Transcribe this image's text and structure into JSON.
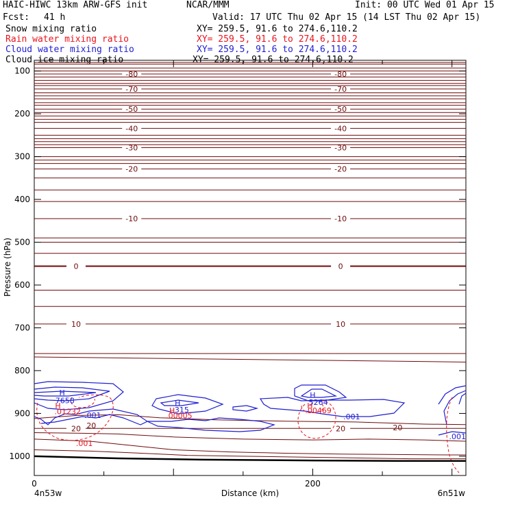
{
  "header": {
    "model": "HAIC-HIWC 13km ARW-GFS init",
    "org": "NCAR/MMM",
    "init": "Init: 00 UTC Wed 01 Apr 15",
    "fcst_label": "Fcst:",
    "fcst_value": "41 h",
    "valid": "Valid: 17 UTC Thu 02 Apr 15 (14 LST Thu 02 Apr 15)",
    "fields": [
      {
        "name": "Snow mixing ratio",
        "xy": "XY= 259.5, 91.6 to 274.6,110.2",
        "color": "#000000"
      },
      {
        "name": "Rain water mixing ratio",
        "xy": "XY= 259.5, 91.6 to 274.6,110.2",
        "color": "#e8141e"
      },
      {
        "name": "Cloud water mixing ratio",
        "xy": "XY= 259.5, 91.6 to 274.6,110.2",
        "color": "#1e1ed2"
      },
      {
        "name": "Cloud ice mixing ratio",
        "xy": "XY= 259.5, 91.6 to 274.6,110.2",
        "color": "#000000"
      }
    ]
  },
  "chart_data": {
    "type": "line",
    "xlabel": "Distance (km)",
    "ylabel": "Pressure (hPa)",
    "xlim": [
      0,
      310
    ],
    "ylim": [
      75,
      1045
    ],
    "x_ticks": [
      0,
      200
    ],
    "y_ticks": [
      100,
      200,
      300,
      400,
      500,
      600,
      700,
      800,
      900,
      1000
    ],
    "x_end_labels": {
      "left": "4n53w",
      "right": "6n51w"
    },
    "colors": {
      "temperature": "#6e0a0a",
      "rain": "#e8141e",
      "cloud_water": "#1e1ed2",
      "ground": "#000000"
    },
    "temperature_isotherms": [
      {
        "label": "-80",
        "pressure": 107
      },
      {
        "label": "-70",
        "pressure": 142
      },
      {
        "label": "-50",
        "pressure": 189
      },
      {
        "label": "-40",
        "pressure": 234
      },
      {
        "label": "-30",
        "pressure": 279
      },
      {
        "label": "-20",
        "pressure": 329
      },
      {
        "label": "-10",
        "pressure": 445
      },
      {
        "label": "0",
        "pressure": 556
      },
      {
        "label": "10",
        "pressure": 691
      },
      {
        "label": "20",
        "pressure": 935
      }
    ],
    "annotations": [
      {
        "text": "H",
        "x": 20,
        "p": 851,
        "color": "#1e1ed2"
      },
      {
        "text": "7658",
        "x": 22,
        "p": 870,
        "color": "#1e1ed2"
      },
      {
        "text": "H",
        "x": 17,
        "p": 882,
        "color": "#e8141e"
      },
      {
        "text": ".01232",
        "x": 24,
        "p": 895,
        "color": "#e8141e"
      },
      {
        "text": ".001",
        "x": 42,
        "p": 904,
        "color": "#1e1ed2"
      },
      {
        "text": "20",
        "x": 41,
        "p": 928,
        "color": "#6e0a0a"
      },
      {
        "text": ".001",
        "x": 36,
        "p": 970,
        "color": "#e8141e"
      },
      {
        "text": "H",
        "x": 103,
        "p": 875,
        "color": "#1e1ed2"
      },
      {
        "text": "315",
        "x": 106,
        "p": 891,
        "color": "#1e1ed2"
      },
      {
        "text": "H",
        "x": 99,
        "p": 893,
        "color": "#e8141e"
      },
      {
        "text": ".00005",
        "x": 104,
        "p": 905,
        "color": "#e8141e"
      },
      {
        "text": "H",
        "x": 200,
        "p": 857,
        "color": "#1e1ed2"
      },
      {
        "text": "5264",
        "x": 204,
        "p": 874,
        "color": "#1e1ed2"
      },
      {
        "text": "H",
        "x": 198,
        "p": 882,
        "color": "#e8141e"
      },
      {
        "text": ".00469",
        "x": 204,
        "p": 893,
        "color": "#e8141e"
      },
      {
        "text": ".001",
        "x": 228,
        "p": 907,
        "color": "#1e1ed2"
      },
      {
        "text": "20",
        "x": 261,
        "p": 933,
        "color": "#6e0a0a"
      },
      {
        "text": ".001",
        "x": 304,
        "p": 954,
        "color": "#1e1ed2"
      }
    ]
  }
}
